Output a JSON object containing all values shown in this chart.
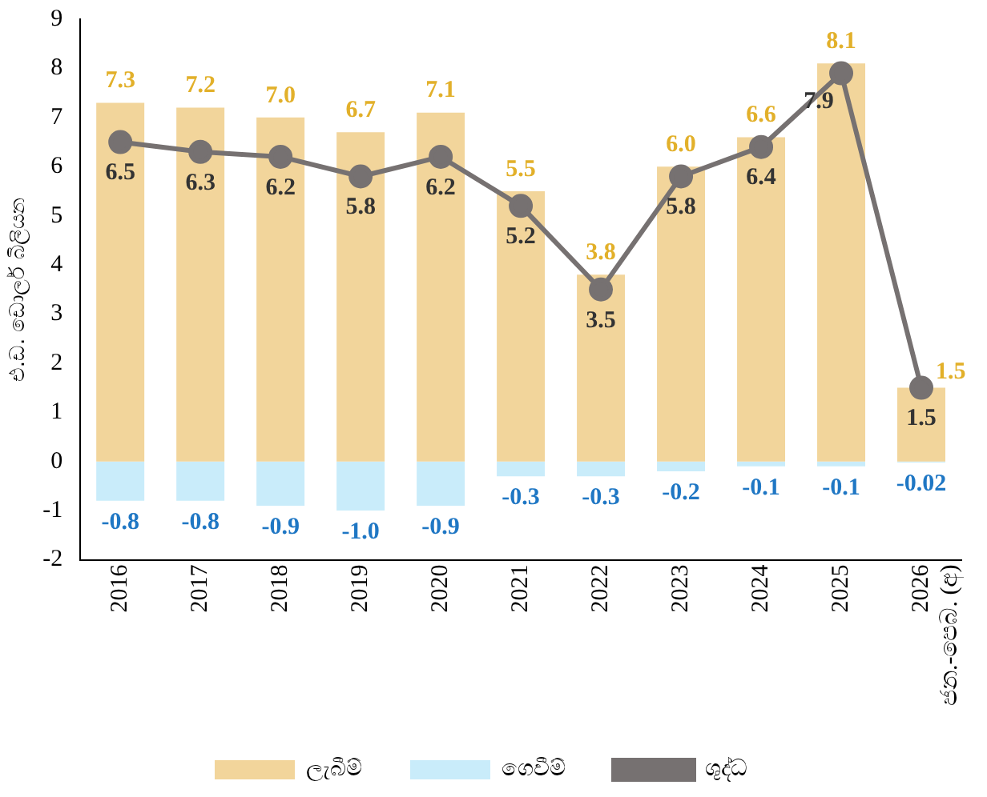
{
  "chart_data": {
    "type": "bar",
    "ylabel": "එ.ඩ. ඩොලර් බිලියන",
    "categories": [
      "2016",
      "2017",
      "2018",
      "2019",
      "2020",
      "2021",
      "2022",
      "2023",
      "2024",
      "2025",
      "2026 ජන.-පෙබ. (අ)"
    ],
    "series": [
      {
        "name": "ලැබීම්",
        "color": "#f2d59b",
        "values": [
          7.3,
          7.2,
          7.0,
          6.7,
          7.1,
          5.5,
          3.8,
          6.0,
          6.6,
          8.1,
          1.5
        ],
        "value_labels": [
          "7.3",
          "7.2",
          "7.0",
          "6.7",
          "7.1",
          "5.5",
          "3.8",
          "6.0",
          "6.6",
          "8.1",
          "1.5"
        ]
      },
      {
        "name": "ගෙවීම්",
        "color": "#c9ecfa",
        "values": [
          -0.8,
          -0.8,
          -0.9,
          -1.0,
          -0.9,
          -0.3,
          -0.3,
          -0.2,
          -0.1,
          -0.1,
          -0.02
        ],
        "value_labels": [
          "-0.8",
          "-0.8",
          "-0.9",
          "-1.0",
          "-0.9",
          "-0.3",
          "-0.3",
          "-0.2",
          "-0.1",
          "-0.1",
          "-0.02"
        ]
      },
      {
        "name": "ශුද්ධ",
        "type": "line",
        "color": "#767171",
        "values": [
          6.5,
          6.3,
          6.2,
          5.8,
          6.2,
          5.2,
          3.5,
          5.8,
          6.4,
          7.9,
          1.5
        ]
      }
    ],
    "stacked": true,
    "ylim": [
      -2,
      9
    ],
    "yticks": [
      -2,
      -1,
      0,
      1,
      2,
      3,
      4,
      5,
      6,
      7,
      8,
      9
    ],
    "grid": false,
    "legend": "bottom",
    "marker": "circle",
    "line_style": "solid",
    "data_labels": true
  }
}
